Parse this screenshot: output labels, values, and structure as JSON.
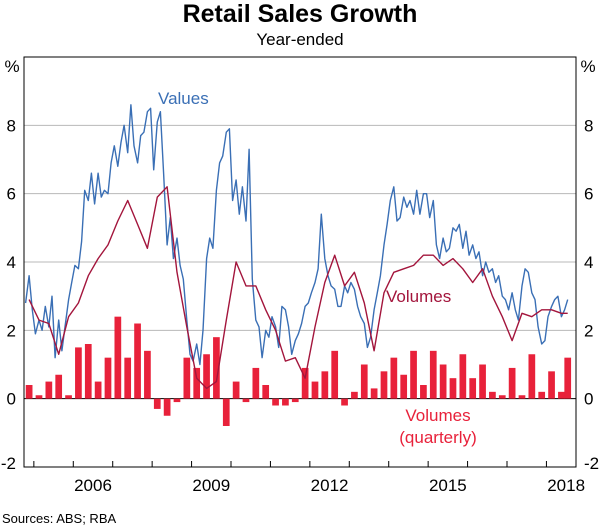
{
  "chart_data": {
    "type": "bar+line",
    "title": "Retail Sales Growth",
    "subtitle": "Year-ended",
    "y_unit_left": "%",
    "y_unit_right": "%",
    "ylim": [
      -2,
      10
    ],
    "yticks": [
      -2,
      0,
      2,
      4,
      6,
      8
    ],
    "xlim": [
      2004.75,
      2018.75
    ],
    "xticks": [
      {
        "label": "2006",
        "value": 2006.5
      },
      {
        "label": "2009",
        "value": 2009.5
      },
      {
        "label": "2012",
        "value": 2012.5
      },
      {
        "label": "2015",
        "value": 2015.5
      },
      {
        "label": "2018",
        "value": 2018.5
      }
    ],
    "source": "Sources: ABS; RBA",
    "series": [
      {
        "name": "Values",
        "kind": "line",
        "color": "#3a6fb5",
        "label_text": "Values",
        "points": [
          [
            2004.79,
            2.8
          ],
          [
            2004.88,
            3.6
          ],
          [
            2004.96,
            2.6
          ],
          [
            2005.04,
            1.9
          ],
          [
            2005.13,
            2.3
          ],
          [
            2005.21,
            2.0
          ],
          [
            2005.29,
            2.7
          ],
          [
            2005.38,
            2.1
          ],
          [
            2005.46,
            3.0
          ],
          [
            2005.54,
            1.2
          ],
          [
            2005.63,
            2.3
          ],
          [
            2005.71,
            1.4
          ],
          [
            2005.79,
            2.1
          ],
          [
            2005.88,
            2.9
          ],
          [
            2005.96,
            3.4
          ],
          [
            2006.04,
            3.9
          ],
          [
            2006.13,
            3.8
          ],
          [
            2006.21,
            4.6
          ],
          [
            2006.29,
            6.1
          ],
          [
            2006.38,
            5.8
          ],
          [
            2006.46,
            6.6
          ],
          [
            2006.54,
            5.7
          ],
          [
            2006.63,
            6.6
          ],
          [
            2006.71,
            5.9
          ],
          [
            2006.79,
            6.1
          ],
          [
            2006.88,
            6.0
          ],
          [
            2006.96,
            6.9
          ],
          [
            2007.04,
            7.4
          ],
          [
            2007.13,
            6.8
          ],
          [
            2007.21,
            7.5
          ],
          [
            2007.29,
            8.0
          ],
          [
            2007.38,
            7.2
          ],
          [
            2007.46,
            8.6
          ],
          [
            2007.54,
            7.4
          ],
          [
            2007.63,
            6.9
          ],
          [
            2007.71,
            7.7
          ],
          [
            2007.79,
            7.8
          ],
          [
            2007.88,
            8.4
          ],
          [
            2007.96,
            8.5
          ],
          [
            2008.04,
            6.7
          ],
          [
            2008.13,
            8.1
          ],
          [
            2008.21,
            8.4
          ],
          [
            2008.29,
            6.6
          ],
          [
            2008.38,
            4.5
          ],
          [
            2008.46,
            5.3
          ],
          [
            2008.54,
            4.1
          ],
          [
            2008.63,
            4.7
          ],
          [
            2008.71,
            3.9
          ],
          [
            2008.79,
            3.5
          ],
          [
            2008.88,
            2.3
          ],
          [
            2008.96,
            1.3
          ],
          [
            2009.04,
            1.1
          ],
          [
            2009.13,
            1.6
          ],
          [
            2009.21,
            1.0
          ],
          [
            2009.29,
            2.0
          ],
          [
            2009.38,
            4.1
          ],
          [
            2009.46,
            4.7
          ],
          [
            2009.54,
            4.4
          ],
          [
            2009.63,
            6.1
          ],
          [
            2009.71,
            6.9
          ],
          [
            2009.79,
            7.1
          ],
          [
            2009.88,
            7.8
          ],
          [
            2009.96,
            7.9
          ],
          [
            2010.04,
            5.8
          ],
          [
            2010.13,
            6.4
          ],
          [
            2010.21,
            5.4
          ],
          [
            2010.29,
            6.2
          ],
          [
            2010.38,
            5.2
          ],
          [
            2010.46,
            7.3
          ],
          [
            2010.54,
            3.5
          ],
          [
            2010.63,
            2.3
          ],
          [
            2010.71,
            2.1
          ],
          [
            2010.79,
            1.2
          ],
          [
            2010.88,
            2.0
          ],
          [
            2010.96,
            1.8
          ],
          [
            2011.04,
            2.4
          ],
          [
            2011.13,
            2.1
          ],
          [
            2011.21,
            1.5
          ],
          [
            2011.29,
            2.7
          ],
          [
            2011.38,
            2.6
          ],
          [
            2011.46,
            2.1
          ],
          [
            2011.54,
            1.3
          ],
          [
            2011.63,
            1.7
          ],
          [
            2011.71,
            1.9
          ],
          [
            2011.79,
            2.2
          ],
          [
            2011.88,
            2.7
          ],
          [
            2011.96,
            2.8
          ],
          [
            2012.04,
            3.1
          ],
          [
            2012.13,
            3.4
          ],
          [
            2012.21,
            3.8
          ],
          [
            2012.29,
            5.4
          ],
          [
            2012.38,
            4.1
          ],
          [
            2012.46,
            3.6
          ],
          [
            2012.54,
            3.3
          ],
          [
            2012.63,
            3.2
          ],
          [
            2012.71,
            2.7
          ],
          [
            2012.79,
            2.7
          ],
          [
            2012.88,
            3.3
          ],
          [
            2012.96,
            3.1
          ],
          [
            2013.04,
            3.4
          ],
          [
            2013.13,
            3.2
          ],
          [
            2013.21,
            2.7
          ],
          [
            2013.29,
            2.4
          ],
          [
            2013.38,
            2.2
          ],
          [
            2013.46,
            1.5
          ],
          [
            2013.54,
            1.8
          ],
          [
            2013.63,
            2.6
          ],
          [
            2013.71,
            3.1
          ],
          [
            2013.79,
            3.6
          ],
          [
            2013.88,
            4.5
          ],
          [
            2013.96,
            5.1
          ],
          [
            2014.04,
            5.8
          ],
          [
            2014.13,
            6.2
          ],
          [
            2014.21,
            5.2
          ],
          [
            2014.29,
            5.3
          ],
          [
            2014.38,
            5.9
          ],
          [
            2014.46,
            5.6
          ],
          [
            2014.54,
            5.8
          ],
          [
            2014.63,
            5.4
          ],
          [
            2014.71,
            6.1
          ],
          [
            2014.79,
            5.4
          ],
          [
            2014.88,
            6.0
          ],
          [
            2014.96,
            6.0
          ],
          [
            2015.04,
            5.3
          ],
          [
            2015.13,
            5.8
          ],
          [
            2015.21,
            4.5
          ],
          [
            2015.29,
            4.1
          ],
          [
            2015.38,
            4.7
          ],
          [
            2015.46,
            4.3
          ],
          [
            2015.54,
            4.4
          ],
          [
            2015.63,
            5.0
          ],
          [
            2015.71,
            4.9
          ],
          [
            2015.79,
            5.1
          ],
          [
            2015.88,
            4.4
          ],
          [
            2015.96,
            4.9
          ],
          [
            2016.04,
            4.2
          ],
          [
            2016.13,
            4.5
          ],
          [
            2016.21,
            4.1
          ],
          [
            2016.29,
            4.3
          ],
          [
            2016.38,
            3.6
          ],
          [
            2016.46,
            4.0
          ],
          [
            2016.54,
            3.7
          ],
          [
            2016.63,
            3.8
          ],
          [
            2016.71,
            3.4
          ],
          [
            2016.79,
            3.6
          ],
          [
            2016.88,
            3.0
          ],
          [
            2016.96,
            2.9
          ],
          [
            2017.04,
            2.6
          ],
          [
            2017.13,
            3.1
          ],
          [
            2017.21,
            2.6
          ],
          [
            2017.29,
            2.3
          ],
          [
            2017.38,
            3.3
          ],
          [
            2017.46,
            3.8
          ],
          [
            2017.54,
            3.7
          ],
          [
            2017.63,
            3.1
          ],
          [
            2017.71,
            2.9
          ],
          [
            2017.79,
            2.1
          ],
          [
            2017.88,
            1.6
          ],
          [
            2017.96,
            1.7
          ],
          [
            2018.04,
            2.4
          ],
          [
            2018.13,
            2.7
          ],
          [
            2018.21,
            2.9
          ],
          [
            2018.29,
            3.0
          ],
          [
            2018.38,
            2.4
          ],
          [
            2018.46,
            2.6
          ],
          [
            2018.54,
            2.9
          ]
        ]
      },
      {
        "name": "Volumes",
        "kind": "line",
        "color": "#a3153c",
        "label_text": "Volumes",
        "points": [
          [
            2004.88,
            2.9
          ],
          [
            2005.13,
            2.3
          ],
          [
            2005.38,
            2.2
          ],
          [
            2005.63,
            1.3
          ],
          [
            2005.88,
            2.4
          ],
          [
            2006.13,
            2.8
          ],
          [
            2006.38,
            3.6
          ],
          [
            2006.63,
            4.1
          ],
          [
            2006.88,
            4.5
          ],
          [
            2007.13,
            5.2
          ],
          [
            2007.38,
            5.8
          ],
          [
            2007.63,
            5.1
          ],
          [
            2007.88,
            4.4
          ],
          [
            2008.13,
            5.9
          ],
          [
            2008.38,
            6.2
          ],
          [
            2008.63,
            3.7
          ],
          [
            2008.88,
            2.1
          ],
          [
            2009.13,
            0.6
          ],
          [
            2009.38,
            0.3
          ],
          [
            2009.63,
            0.5
          ],
          [
            2009.88,
            2.3
          ],
          [
            2010.13,
            4.0
          ],
          [
            2010.38,
            3.3
          ],
          [
            2010.63,
            3.3
          ],
          [
            2010.88,
            2.6
          ],
          [
            2011.13,
            2.0
          ],
          [
            2011.38,
            1.1
          ],
          [
            2011.63,
            1.2
          ],
          [
            2011.88,
            0.6
          ],
          [
            2012.13,
            2.1
          ],
          [
            2012.38,
            3.4
          ],
          [
            2012.63,
            4.2
          ],
          [
            2012.88,
            3.3
          ],
          [
            2013.13,
            3.7
          ],
          [
            2013.38,
            2.8
          ],
          [
            2013.63,
            1.4
          ],
          [
            2013.88,
            3.1
          ],
          [
            2014.13,
            3.7
          ],
          [
            2014.38,
            3.8
          ],
          [
            2014.63,
            3.9
          ],
          [
            2014.88,
            4.2
          ],
          [
            2015.13,
            4.2
          ],
          [
            2015.38,
            3.9
          ],
          [
            2015.63,
            4.1
          ],
          [
            2015.88,
            3.8
          ],
          [
            2016.13,
            3.4
          ],
          [
            2016.38,
            3.8
          ],
          [
            2016.63,
            3.0
          ],
          [
            2016.88,
            2.4
          ],
          [
            2017.13,
            1.7
          ],
          [
            2017.38,
            2.5
          ],
          [
            2017.63,
            2.4
          ],
          [
            2017.88,
            2.6
          ],
          [
            2018.13,
            2.6
          ],
          [
            2018.38,
            2.5
          ],
          [
            2018.54,
            2.5
          ]
        ]
      },
      {
        "name": "Volumes (quarterly)",
        "kind": "bar",
        "color": "#e8213a",
        "label_lines": [
          "Volumes",
          "(quarterly)"
        ],
        "bar_width_years": 0.17,
        "points": [
          [
            2004.88,
            0.4
          ],
          [
            2005.13,
            0.1
          ],
          [
            2005.38,
            0.5
          ],
          [
            2005.63,
            0.7
          ],
          [
            2005.88,
            0.1
          ],
          [
            2006.13,
            1.5
          ],
          [
            2006.38,
            1.6
          ],
          [
            2006.63,
            0.5
          ],
          [
            2006.88,
            1.2
          ],
          [
            2007.13,
            2.4
          ],
          [
            2007.38,
            1.2
          ],
          [
            2007.63,
            2.2
          ],
          [
            2007.88,
            1.4
          ],
          [
            2008.13,
            -0.3
          ],
          [
            2008.38,
            -0.5
          ],
          [
            2008.63,
            -0.1
          ],
          [
            2008.88,
            1.2
          ],
          [
            2009.13,
            0.9
          ],
          [
            2009.38,
            1.3
          ],
          [
            2009.63,
            1.8
          ],
          [
            2009.88,
            -0.8
          ],
          [
            2010.13,
            0.5
          ],
          [
            2010.38,
            -0.1
          ],
          [
            2010.63,
            0.9
          ],
          [
            2010.88,
            0.4
          ],
          [
            2011.13,
            -0.2
          ],
          [
            2011.38,
            -0.2
          ],
          [
            2011.63,
            -0.1
          ],
          [
            2011.88,
            0.9
          ],
          [
            2012.13,
            0.5
          ],
          [
            2012.38,
            0.8
          ],
          [
            2012.63,
            1.4
          ],
          [
            2012.88,
            -0.2
          ],
          [
            2013.13,
            0.2
          ],
          [
            2013.38,
            1.0
          ],
          [
            2013.63,
            0.3
          ],
          [
            2013.88,
            0.8
          ],
          [
            2014.13,
            1.2
          ],
          [
            2014.38,
            0.7
          ],
          [
            2014.63,
            1.4
          ],
          [
            2014.88,
            0.4
          ],
          [
            2015.13,
            1.4
          ],
          [
            2015.38,
            1.0
          ],
          [
            2015.63,
            0.6
          ],
          [
            2015.88,
            1.3
          ],
          [
            2016.13,
            0.6
          ],
          [
            2016.38,
            1.0
          ],
          [
            2016.63,
            0.2
          ],
          [
            2016.88,
            0.1
          ],
          [
            2017.13,
            0.9
          ],
          [
            2017.38,
            0.1
          ],
          [
            2017.63,
            1.3
          ],
          [
            2017.88,
            0.2
          ],
          [
            2018.13,
            0.8
          ],
          [
            2018.38,
            0.2
          ],
          [
            2018.54,
            1.2
          ]
        ]
      }
    ]
  }
}
